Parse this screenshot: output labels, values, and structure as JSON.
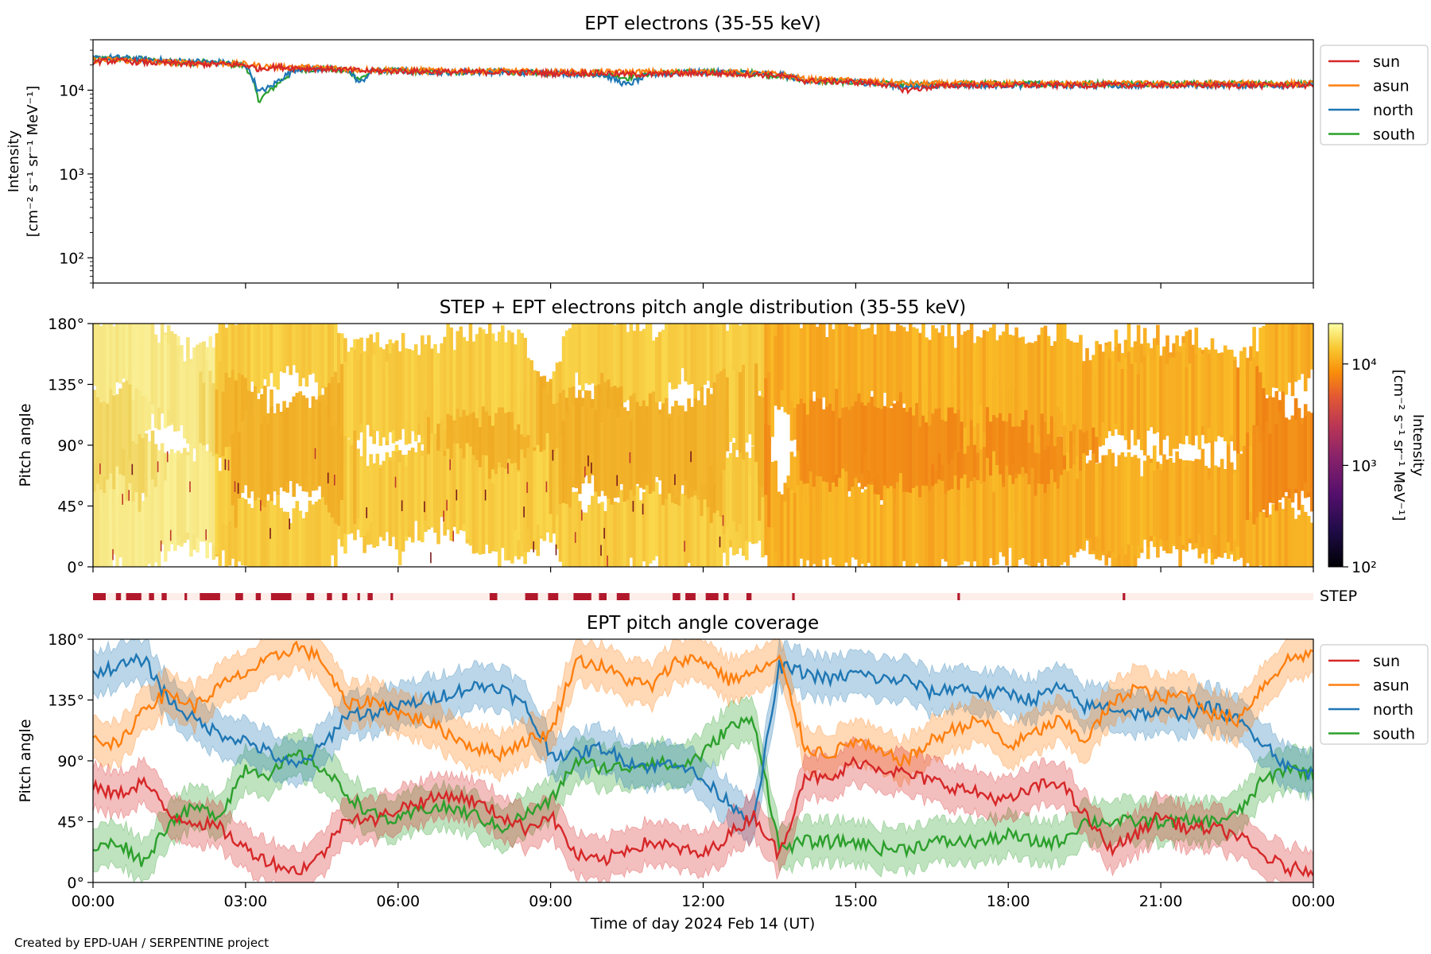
{
  "footer": {
    "credit": "Created by EPD-UAH / SERPENTINE project"
  },
  "colors": {
    "sun": "#d62728",
    "asun": "#ff7f0e",
    "north": "#1f77b4",
    "south": "#2ca02c",
    "step_mark": "#b2182b",
    "step_bg": "#fdeee9"
  },
  "chart_data": [
    {
      "type": "line",
      "title": "EPT electrons (35-55 keV)",
      "ylabel": "Intensity",
      "ylabel_units": "[cm⁻² s⁻¹ sr⁻¹ MeV⁻¹]",
      "yscale": "log",
      "ylim": [
        50,
        40000
      ],
      "yticks": [
        100,
        1000,
        10000
      ],
      "ytick_labels": [
        "10²",
        "10³",
        "10⁴"
      ],
      "xlim": [
        0,
        24
      ],
      "x": [
        0,
        0.5,
        1,
        1.5,
        2,
        2.5,
        3,
        3.25,
        3.5,
        4,
        4.5,
        5,
        5.25,
        5.5,
        6,
        7,
        8,
        9,
        10,
        10.5,
        11,
        12,
        13,
        13.5,
        14,
        15,
        15.5,
        16,
        16.5,
        17,
        18,
        19,
        20,
        21,
        22,
        23,
        24
      ],
      "series": [
        {
          "name": "sun",
          "values": [
            22000,
            22500,
            21500,
            21000,
            20500,
            20500,
            20000,
            18000,
            19000,
            18500,
            18000,
            17500,
            17000,
            17000,
            17000,
            16500,
            16500,
            16000,
            16000,
            15500,
            15500,
            16000,
            15500,
            15000,
            13000,
            12500,
            12000,
            10000,
            11000,
            11500,
            11500,
            11500,
            11500,
            11500,
            11500,
            11500,
            11500
          ]
        },
        {
          "name": "asun",
          "values": [
            23000,
            23000,
            22000,
            21500,
            21000,
            21000,
            20500,
            19500,
            19000,
            19000,
            18500,
            18000,
            17500,
            17500,
            17500,
            17000,
            17000,
            16500,
            16500,
            16500,
            16500,
            16500,
            16000,
            15500,
            13500,
            13000,
            12500,
            12000,
            12000,
            12000,
            12000,
            12000,
            12000,
            12000,
            12000,
            12000,
            12000
          ]
        },
        {
          "name": "north",
          "values": [
            24000,
            24500,
            23500,
            22500,
            22000,
            21500,
            20000,
            9500,
            11000,
            18000,
            18000,
            17500,
            12000,
            17000,
            17000,
            16500,
            16500,
            16000,
            15500,
            11500,
            15500,
            16500,
            16000,
            15500,
            13000,
            12500,
            12000,
            11000,
            11500,
            11500,
            11500,
            11500,
            11500,
            11500,
            11500,
            11500,
            11500
          ]
        },
        {
          "name": "south",
          "values": [
            23500,
            24000,
            23000,
            22000,
            21500,
            21000,
            19500,
            7500,
            10000,
            17500,
            18000,
            17000,
            13500,
            17000,
            17000,
            16500,
            16500,
            16000,
            16000,
            14000,
            16000,
            16500,
            16000,
            15000,
            13000,
            12500,
            12000,
            11500,
            11500,
            12000,
            12000,
            12000,
            12000,
            12000,
            12000,
            12000,
            12000
          ]
        }
      ],
      "legend": "right"
    },
    {
      "type": "heatmap",
      "title": "STEP + EPT electrons pitch angle distribution (35-55 keV)",
      "ylabel": "Pitch angle",
      "yticks": [
        "0°",
        "45°",
        "90°",
        "135°",
        "180°"
      ],
      "ylim": [
        0,
        180
      ],
      "xlim": [
        0,
        24
      ],
      "colorbar": {
        "label": "Intensity",
        "units": "[cm⁻² s⁻¹ sr⁻¹ MeV⁻¹]",
        "scale": "log",
        "range": [
          100,
          25000
        ],
        "ticks": [
          "10²",
          "10³",
          "10⁴"
        ],
        "colormap": "inferno"
      }
    },
    {
      "type": "bar",
      "label": "STEP",
      "description_of_marks": "STEP data availability intervals (hours)",
      "intervals": [
        [
          0,
          0.25
        ],
        [
          0.45,
          0.55
        ],
        [
          0.65,
          0.95
        ],
        [
          1.1,
          1.2
        ],
        [
          1.35,
          1.45
        ],
        [
          1.8,
          1.85
        ],
        [
          2.1,
          2.5
        ],
        [
          2.8,
          2.95
        ],
        [
          3.2,
          3.3
        ],
        [
          3.5,
          3.9
        ],
        [
          4.2,
          4.35
        ],
        [
          4.6,
          4.7
        ],
        [
          4.9,
          5.0
        ],
        [
          5.2,
          5.25
        ],
        [
          5.4,
          5.5
        ],
        [
          5.85,
          5.9
        ],
        [
          7.8,
          7.95
        ],
        [
          8.5,
          8.75
        ],
        [
          8.95,
          9.15
        ],
        [
          9.45,
          9.8
        ],
        [
          9.95,
          10.1
        ],
        [
          10.3,
          10.55
        ],
        [
          11.4,
          11.55
        ],
        [
          11.65,
          11.85
        ],
        [
          12.05,
          12.3
        ],
        [
          12.4,
          12.5
        ],
        [
          12.85,
          12.95
        ],
        [
          13.75,
          13.8
        ],
        [
          17.0,
          17.05
        ],
        [
          20.25,
          20.3
        ]
      ]
    },
    {
      "type": "line",
      "title": "EPT pitch angle coverage",
      "ylabel": "Pitch angle",
      "yticks": [
        "0°",
        "45°",
        "90°",
        "135°",
        "180°"
      ],
      "ylim": [
        0,
        180
      ],
      "xlim": [
        0,
        24
      ],
      "xlabel": "Time of day 2024 Feb 14 (UT)",
      "xtick_labels": [
        "00:00",
        "03:00",
        "06:00",
        "09:00",
        "12:00",
        "15:00",
        "18:00",
        "21:00",
        "00:00"
      ],
      "x": [
        0,
        0.5,
        1,
        1.5,
        2,
        2.5,
        3,
        3.5,
        4,
        4.5,
        5,
        5.5,
        6,
        6.5,
        7,
        7.5,
        8,
        8.5,
        9,
        9.5,
        10,
        10.5,
        11,
        11.5,
        12,
        12.5,
        13,
        13.5,
        14,
        14.5,
        15,
        15.5,
        16,
        16.5,
        17,
        17.5,
        18,
        18.5,
        19,
        19.5,
        20,
        20.5,
        21,
        21.5,
        22,
        22.5,
        23,
        23.5,
        24
      ],
      "series": [
        {
          "name": "sun",
          "values": [
            70,
            65,
            75,
            50,
            45,
            40,
            25,
            15,
            8,
            20,
            50,
            45,
            55,
            60,
            65,
            60,
            50,
            40,
            50,
            20,
            15,
            25,
            30,
            25,
            20,
            35,
            50,
            20,
            80,
            75,
            90,
            85,
            80,
            75,
            70,
            65,
            60,
            70,
            75,
            50,
            25,
            35,
            50,
            40,
            40,
            35,
            20,
            10,
            10
          ]
        },
        {
          "name": "asun",
          "values": [
            110,
            100,
            130,
            140,
            130,
            145,
            155,
            165,
            175,
            165,
            130,
            135,
            125,
            120,
            110,
            100,
            95,
            105,
            110,
            165,
            160,
            150,
            145,
            165,
            165,
            150,
            155,
            165,
            100,
            95,
            105,
            95,
            90,
            105,
            115,
            120,
            100,
            110,
            120,
            105,
            130,
            145,
            135,
            140,
            125,
            120,
            145,
            165,
            170
          ]
        },
        {
          "name": "north",
          "values": [
            155,
            160,
            165,
            135,
            120,
            110,
            105,
            95,
            85,
            100,
            125,
            125,
            130,
            135,
            140,
            145,
            145,
            130,
            95,
            95,
            100,
            90,
            85,
            90,
            75,
            60,
            45,
            160,
            155,
            150,
            155,
            150,
            150,
            140,
            145,
            140,
            140,
            135,
            145,
            130,
            130,
            125,
            125,
            125,
            130,
            120,
            105,
            85,
            80
          ]
        },
        {
          "name": "south",
          "values": [
            25,
            30,
            15,
            45,
            55,
            50,
            85,
            80,
            95,
            85,
            65,
            50,
            45,
            55,
            55,
            50,
            40,
            50,
            60,
            90,
            85,
            85,
            90,
            85,
            95,
            115,
            120,
            25,
            30,
            30,
            30,
            25,
            25,
            30,
            30,
            30,
            35,
            30,
            30,
            45,
            45,
            45,
            45,
            45,
            45,
            50,
            75,
            85,
            80
          ]
        }
      ],
      "legend": "right"
    }
  ]
}
